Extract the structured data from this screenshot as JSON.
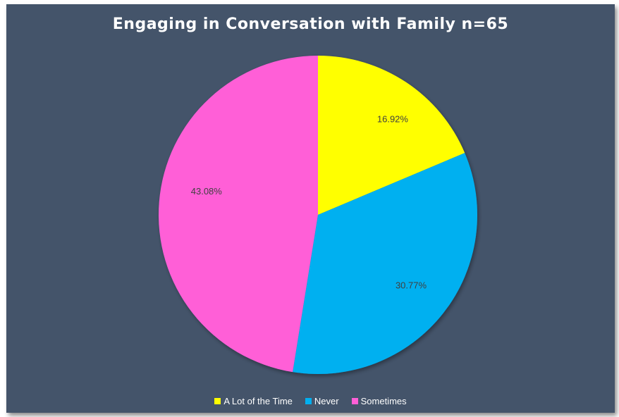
{
  "chart_data": {
    "type": "pie",
    "title": "Engaging in Conversation with Family n=65",
    "categories": [
      "A Lot of the Time",
      "Never",
      "Sometimes"
    ],
    "values": [
      16.92,
      30.77,
      43.08
    ],
    "labels": [
      "16.92%",
      "30.77%",
      "43.08%"
    ],
    "colors": [
      "#ffff00",
      "#00b0f0",
      "#ff5fd7"
    ],
    "legend_position": "bottom",
    "start_angle": "12 o'clock, clockwise"
  },
  "background_color": "#44546a"
}
